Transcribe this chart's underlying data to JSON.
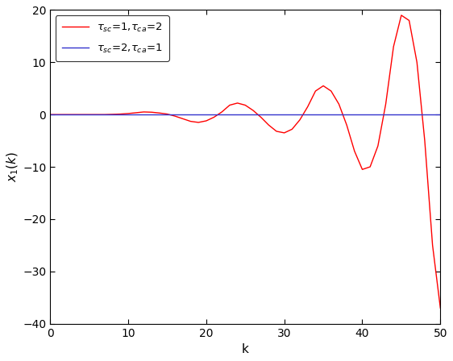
{
  "title": "",
  "xlabel": "k",
  "ylabel": "$x_1(k)$",
  "xlim": [
    0,
    50
  ],
  "ylim": [
    -40,
    20
  ],
  "yticks": [
    -40,
    -30,
    -20,
    -10,
    0,
    10,
    20
  ],
  "xticks": [
    0,
    10,
    20,
    30,
    40,
    50
  ],
  "red_color": "#FF0000",
  "blue_color": "#3333CC",
  "background_color": "#FFFFFF",
  "linewidth": 1.0,
  "red_x": [
    0,
    1,
    2,
    3,
    4,
    5,
    6,
    7,
    8,
    9,
    10,
    11,
    12,
    13,
    14,
    15,
    16,
    17,
    18,
    19,
    20,
    21,
    22,
    23,
    24,
    25,
    26,
    27,
    28,
    29,
    30,
    31,
    32,
    33,
    34,
    35,
    36,
    37,
    38,
    39,
    40,
    41,
    42,
    43,
    44,
    45,
    46,
    47,
    48,
    49,
    50
  ],
  "red_y": [
    0.0,
    0.0,
    0.0,
    0.0,
    0.0,
    0.0,
    0.0,
    0.0,
    0.05,
    0.1,
    0.2,
    0.35,
    0.5,
    0.45,
    0.3,
    0.1,
    -0.3,
    -0.8,
    -1.3,
    -1.5,
    -1.2,
    -0.5,
    0.5,
    1.8,
    2.2,
    1.8,
    0.8,
    -0.5,
    -2.0,
    -3.2,
    -3.5,
    -2.8,
    -1.0,
    1.5,
    4.5,
    5.5,
    4.5,
    2.0,
    -2.0,
    -7.0,
    -10.5,
    -10.0,
    -6.0,
    2.0,
    13.0,
    19.0,
    18.0,
    10.0,
    -5.0,
    -25.0,
    -37.0
  ],
  "blue_x": [
    0,
    50
  ],
  "blue_y": [
    0.0,
    0.0
  ]
}
